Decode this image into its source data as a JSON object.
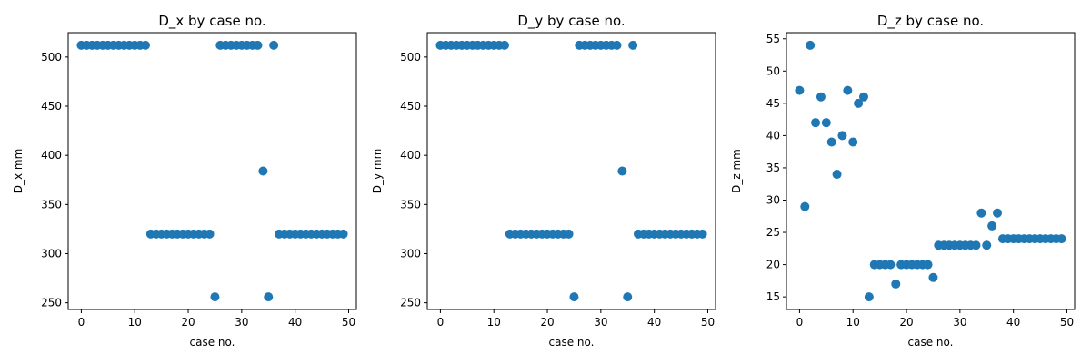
{
  "chart_data": [
    {
      "type": "scatter",
      "title": "D_x by case no.",
      "xlabel": "case no.",
      "ylabel": "D_x mm",
      "xlim": [
        -2.45,
        51.45
      ],
      "ylim": [
        243.2,
        524.8
      ],
      "xticks": [
        0,
        10,
        20,
        30,
        40,
        50
      ],
      "yticks": [
        250,
        300,
        350,
        400,
        450,
        500
      ],
      "color": "#1f77b4",
      "x": [
        0,
        1,
        2,
        3,
        4,
        5,
        6,
        7,
        8,
        9,
        10,
        11,
        12,
        13,
        14,
        15,
        16,
        17,
        18,
        19,
        20,
        21,
        22,
        23,
        24,
        25,
        26,
        27,
        28,
        29,
        30,
        31,
        32,
        33,
        34,
        35,
        36,
        37,
        38,
        39,
        40,
        41,
        42,
        43,
        44,
        45,
        46,
        47,
        48,
        49
      ],
      "y": [
        512,
        512,
        512,
        512,
        512,
        512,
        512,
        512,
        512,
        512,
        512,
        512,
        512,
        320,
        320,
        320,
        320,
        320,
        320,
        320,
        320,
        320,
        320,
        320,
        320,
        256,
        512,
        512,
        512,
        512,
        512,
        512,
        512,
        512,
        384,
        256,
        512,
        320,
        320,
        320,
        320,
        320,
        320,
        320,
        320,
        320,
        320,
        320,
        320,
        320
      ]
    },
    {
      "type": "scatter",
      "title": "D_y by case no.",
      "xlabel": "case no.",
      "ylabel": "D_y mm",
      "xlim": [
        -2.45,
        51.45
      ],
      "ylim": [
        243.2,
        524.8
      ],
      "xticks": [
        0,
        10,
        20,
        30,
        40,
        50
      ],
      "yticks": [
        250,
        300,
        350,
        400,
        450,
        500
      ],
      "color": "#1f77b4",
      "x": [
        0,
        1,
        2,
        3,
        4,
        5,
        6,
        7,
        8,
        9,
        10,
        11,
        12,
        13,
        14,
        15,
        16,
        17,
        18,
        19,
        20,
        21,
        22,
        23,
        24,
        25,
        26,
        27,
        28,
        29,
        30,
        31,
        32,
        33,
        34,
        35,
        36,
        37,
        38,
        39,
        40,
        41,
        42,
        43,
        44,
        45,
        46,
        47,
        48,
        49
      ],
      "y": [
        512,
        512,
        512,
        512,
        512,
        512,
        512,
        512,
        512,
        512,
        512,
        512,
        512,
        320,
        320,
        320,
        320,
        320,
        320,
        320,
        320,
        320,
        320,
        320,
        320,
        256,
        512,
        512,
        512,
        512,
        512,
        512,
        512,
        512,
        384,
        256,
        512,
        320,
        320,
        320,
        320,
        320,
        320,
        320,
        320,
        320,
        320,
        320,
        320,
        320
      ]
    },
    {
      "type": "scatter",
      "title": "D_z by case no.",
      "xlabel": "case no.",
      "ylabel": "D_z mm",
      "xlim": [
        -2.45,
        51.45
      ],
      "ylim": [
        13.05,
        55.95
      ],
      "xticks": [
        0,
        10,
        20,
        30,
        40,
        50
      ],
      "yticks": [
        15,
        20,
        25,
        30,
        35,
        40,
        45,
        50,
        55
      ],
      "color": "#1f77b4",
      "x": [
        0,
        1,
        2,
        3,
        4,
        5,
        6,
        7,
        8,
        9,
        10,
        11,
        12,
        13,
        14,
        15,
        16,
        17,
        18,
        19,
        20,
        21,
        22,
        23,
        24,
        25,
        26,
        27,
        28,
        29,
        30,
        31,
        32,
        33,
        34,
        35,
        36,
        37,
        38,
        39,
        40,
        41,
        42,
        43,
        44,
        45,
        46,
        47,
        48,
        49
      ],
      "y": [
        47,
        29,
        54,
        42,
        46,
        42,
        39,
        34,
        40,
        47,
        39,
        45,
        46,
        15,
        20,
        20,
        20,
        20,
        17,
        20,
        20,
        20,
        20,
        20,
        20,
        18,
        23,
        23,
        23,
        23,
        23,
        23,
        23,
        23,
        28,
        23,
        26,
        28,
        24,
        24,
        24,
        24,
        24,
        24,
        24,
        24,
        24,
        24,
        24,
        24
      ]
    }
  ]
}
